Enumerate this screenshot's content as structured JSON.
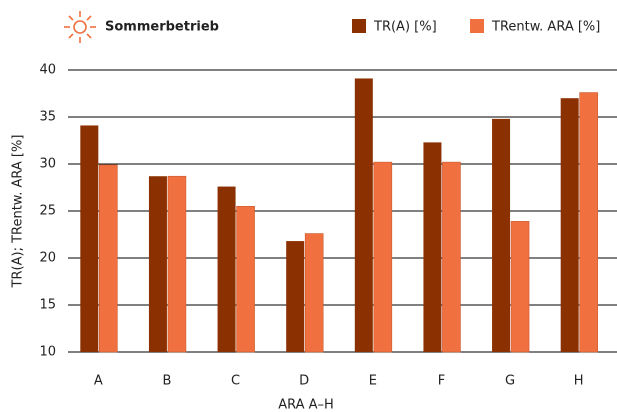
{
  "chart_data": {
    "type": "bar",
    "title": "Sommerbetrieb",
    "x_label": "ARA A–H",
    "y_label": "TR(A); TRentw. ARA [%]",
    "categories": [
      "A",
      "B",
      "C",
      "D",
      "E",
      "F",
      "G",
      "H"
    ],
    "series": [
      {
        "name": "TR(A) [%]",
        "color": "#8b3000",
        "values": [
          34.1,
          28.7,
          27.6,
          21.8,
          39.1,
          32.3,
          34.8,
          37.0
        ]
      },
      {
        "name": "TRentw. ARA [%]",
        "color": "#f07040",
        "values": [
          29.9,
          28.7,
          25.5,
          22.6,
          30.2,
          30.2,
          23.9,
          37.6
        ]
      }
    ],
    "ylim": [
      10,
      40
    ],
    "yticks": [
      10,
      15,
      20,
      25,
      30,
      35,
      40
    ],
    "grid": true,
    "legend": "top-right"
  }
}
